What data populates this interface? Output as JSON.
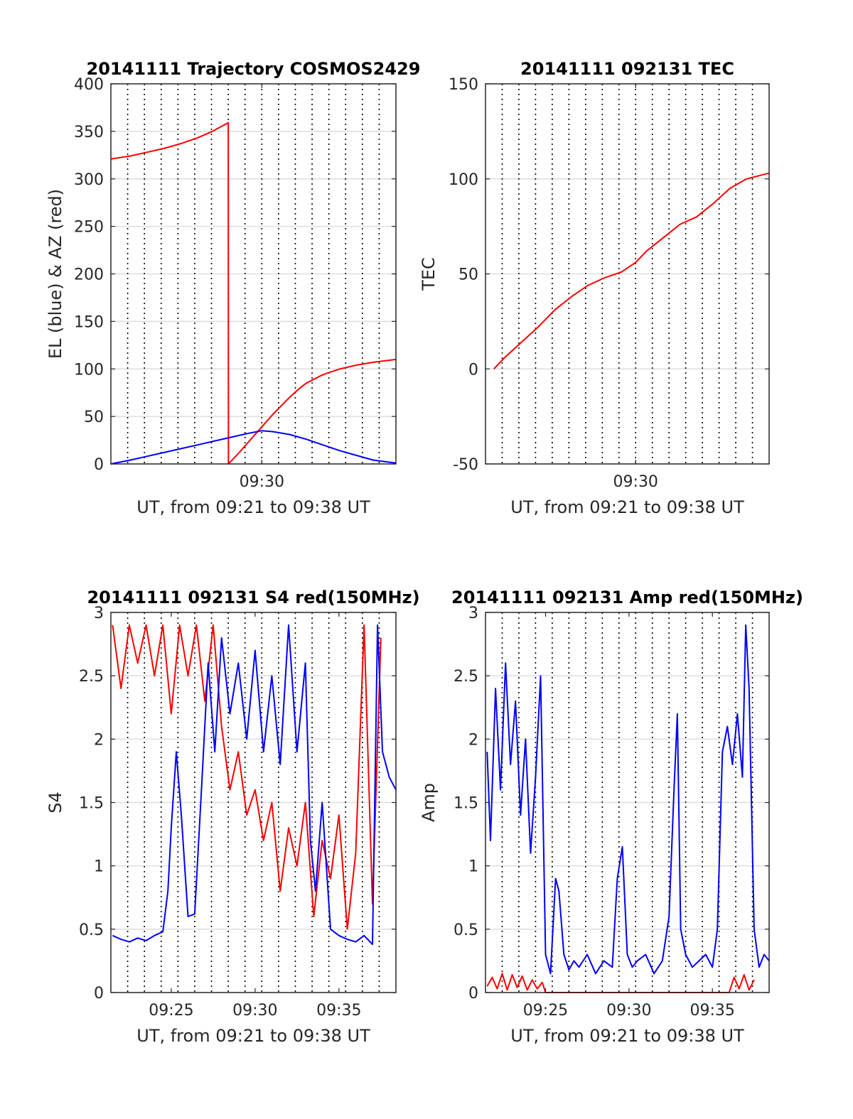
{
  "chart_data": [
    {
      "type": "line",
      "title": "20141111 Trajectory COSMOS2429",
      "xlabel": "UT, from 09:21 to 09:38 UT",
      "ylabel": "EL (blue) & AZ (red)",
      "xlim": [
        9.35,
        26.35
      ],
      "ylim": [
        0,
        400
      ],
      "yticks": [
        0,
        50,
        100,
        150,
        200,
        250,
        300,
        350,
        400
      ],
      "xtick_labels": [
        {
          "x": 18.35,
          "label": "09:30"
        }
      ],
      "x_grid": [
        10.35,
        11.35,
        12.35,
        13.35,
        14.35,
        15.35,
        16.35,
        17.35,
        18.35,
        19.35,
        20.35,
        21.35,
        22.35,
        23.35,
        24.35,
        25.35
      ],
      "grid": true,
      "series": [
        {
          "color": "#ff0000",
          "x": [
            9.35,
            10.5,
            11.5,
            12.5,
            13.5,
            14.5,
            15.4,
            16.35,
            16.36,
            17.0,
            17.5,
            18.0,
            18.5,
            19.0,
            19.5,
            20.0,
            20.5,
            21.0,
            22.0,
            23.0,
            24.0,
            25.0,
            26.35
          ],
          "values": [
            321,
            324,
            328,
            332,
            337,
            343,
            350,
            359,
            0,
            12,
            22,
            32,
            42,
            52,
            61,
            70,
            78,
            85,
            94,
            100,
            104,
            107,
            110
          ]
        },
        {
          "color": "#0000ff",
          "x": [
            9.35,
            10.5,
            11.5,
            12.5,
            13.5,
            14.5,
            15.5,
            16.5,
            17.5,
            18.35,
            19.0,
            20.0,
            21.0,
            22.0,
            23.0,
            24.0,
            25.0,
            26.35
          ],
          "values": [
            0,
            4,
            8,
            12,
            16,
            20,
            24,
            28,
            32,
            35,
            34,
            31,
            26,
            20,
            14,
            9,
            4,
            1
          ]
        }
      ]
    },
    {
      "type": "line",
      "title": "20141111 092131 TEC",
      "xlabel": "UT, from 09:21 to 09:38 UT",
      "ylabel": "TEC",
      "xlim": [
        9.35,
        26.35
      ],
      "ylim": [
        -50,
        150
      ],
      "yticks": [
        -50,
        0,
        50,
        100,
        150
      ],
      "xtick_labels": [
        {
          "x": 18.35,
          "label": "09:30"
        }
      ],
      "x_grid": [
        10.35,
        11.35,
        12.35,
        13.35,
        14.35,
        15.35,
        16.35,
        17.35,
        18.35,
        19.35,
        20.35,
        21.35,
        22.35,
        23.35,
        24.35,
        25.35
      ],
      "grid": true,
      "series": [
        {
          "color": "#ff0000",
          "x": [
            9.85,
            10.5,
            11.5,
            12.5,
            13.5,
            14.5,
            15.5,
            16.5,
            17.5,
            18.35,
            19.0,
            20.0,
            21.0,
            22.0,
            23.0,
            24.0,
            25.0,
            26.35
          ],
          "values": [
            0,
            6,
            14,
            22,
            31,
            38,
            44,
            48,
            51,
            56,
            62,
            69,
            76,
            80,
            87,
            95,
            100,
            103
          ]
        }
      ]
    },
    {
      "type": "line",
      "title": "20141111 092131 S4 red(150MHz)",
      "xlabel": "UT, from 09:21 to 09:38 UT",
      "ylabel": "S4",
      "xlim": [
        21.4,
        38.4
      ],
      "ylim": [
        0,
        3
      ],
      "yticks": [
        0,
        0.5,
        1,
        1.5,
        2,
        2.5,
        3
      ],
      "xtick_labels": [
        {
          "x": 25,
          "label": "09:25"
        },
        {
          "x": 30,
          "label": "09:30"
        },
        {
          "x": 35,
          "label": "09:35"
        }
      ],
      "x_grid": [
        22.4,
        23.4,
        24.4,
        25.4,
        26.4,
        27.4,
        28.4,
        29.4,
        30.4,
        31.4,
        32.4,
        33.4,
        34.4,
        35.4,
        36.4,
        37.4
      ],
      "grid": true,
      "series": [
        {
          "color": "#ff0000",
          "x": [
            21.5,
            22.0,
            22.5,
            23.0,
            23.5,
            24.0,
            24.5,
            25.0,
            25.5,
            26.0,
            26.5,
            27.0,
            27.5,
            28.0,
            28.5,
            29.0,
            29.5,
            30.0,
            30.5,
            31.0,
            31.5,
            32.0,
            32.5,
            33.0,
            33.5,
            34.0,
            34.5,
            35.0,
            35.5,
            36.0,
            36.5,
            37.0,
            37.5
          ],
          "values": [
            2.9,
            2.4,
            2.9,
            2.6,
            2.9,
            2.5,
            2.9,
            2.2,
            2.9,
            2.5,
            2.9,
            2.3,
            2.9,
            2.1,
            1.6,
            1.9,
            1.4,
            1.6,
            1.2,
            1.5,
            0.8,
            1.3,
            1.0,
            1.5,
            0.6,
            1.2,
            0.9,
            1.4,
            0.5,
            1.1,
            2.9,
            0.7,
            2.8
          ]
        },
        {
          "color": "#0000ff",
          "x": [
            21.5,
            22.0,
            22.5,
            23.0,
            23.5,
            24.0,
            24.5,
            24.8,
            25.0,
            25.3,
            25.6,
            26.0,
            26.4,
            26.8,
            27.2,
            27.6,
            28.0,
            28.5,
            29.0,
            29.5,
            30.0,
            30.5,
            31.0,
            31.5,
            32.0,
            32.5,
            33.0,
            33.3,
            33.6,
            34.0,
            34.5,
            35.0,
            35.5,
            36.0,
            36.5,
            37.0,
            37.3,
            37.6,
            38.0,
            38.4
          ],
          "values": [
            0.45,
            0.42,
            0.4,
            0.43,
            0.41,
            0.45,
            0.48,
            0.8,
            1.3,
            1.9,
            1.4,
            0.6,
            0.62,
            1.6,
            2.6,
            1.9,
            2.8,
            2.2,
            2.6,
            2.0,
            2.7,
            1.9,
            2.5,
            1.8,
            2.9,
            1.9,
            2.6,
            1.2,
            0.8,
            1.5,
            0.5,
            0.45,
            0.42,
            0.4,
            0.45,
            0.38,
            2.9,
            1.9,
            1.7,
            1.6
          ]
        }
      ]
    },
    {
      "type": "line",
      "title": "20141111 092131 Amp red(150MHz)",
      "xlabel": "UT, from 09:21 to 09:38 UT",
      "ylabel": "Amp",
      "xlim": [
        21.4,
        38.4
      ],
      "ylim": [
        0,
        3
      ],
      "yticks": [
        0,
        0.5,
        1,
        1.5,
        2,
        2.5,
        3
      ],
      "xtick_labels": [
        {
          "x": 25,
          "label": "09:25"
        },
        {
          "x": 30,
          "label": "09:30"
        },
        {
          "x": 35,
          "label": "09:35"
        }
      ],
      "x_grid": [
        22.4,
        23.4,
        24.4,
        25.4,
        26.4,
        27.4,
        28.4,
        29.4,
        30.4,
        31.4,
        32.4,
        33.4,
        34.4,
        35.4,
        36.4,
        37.4
      ],
      "grid": true,
      "series": [
        {
          "color": "#ff0000",
          "x": [
            21.5,
            21.8,
            22.1,
            22.4,
            22.7,
            23.0,
            23.3,
            23.6,
            23.9,
            24.2,
            24.5,
            24.8,
            25.0,
            36.0,
            36.3,
            36.6,
            36.9,
            37.2,
            37.5
          ],
          "values": [
            0.05,
            0.12,
            0.03,
            0.15,
            0.02,
            0.14,
            0.04,
            0.13,
            0.02,
            0.1,
            0.03,
            0.08,
            0.0,
            0.0,
            0.12,
            0.03,
            0.14,
            0.02,
            0.1
          ]
        },
        {
          "color": "#0000ff",
          "x": [
            21.5,
            21.7,
            22.0,
            22.3,
            22.6,
            22.9,
            23.2,
            23.5,
            23.8,
            24.1,
            24.4,
            24.7,
            25.0,
            25.3,
            25.6,
            25.8,
            26.1,
            26.4,
            26.7,
            27.0,
            27.5,
            28.0,
            28.5,
            29.0,
            29.3,
            29.6,
            29.9,
            30.2,
            30.5,
            31.0,
            31.5,
            32.0,
            32.4,
            32.7,
            32.9,
            33.1,
            33.4,
            33.8,
            34.2,
            34.6,
            35.0,
            35.3,
            35.6,
            35.9,
            36.2,
            36.5,
            36.8,
            37.0,
            37.2,
            37.5,
            37.8,
            38.1,
            38.4
          ],
          "values": [
            1.9,
            1.2,
            2.4,
            1.6,
            2.6,
            1.8,
            2.3,
            1.4,
            2.0,
            1.1,
            1.7,
            2.5,
            0.3,
            0.15,
            0.9,
            0.8,
            0.3,
            0.18,
            0.25,
            0.2,
            0.3,
            0.15,
            0.25,
            0.2,
            0.9,
            1.15,
            0.3,
            0.2,
            0.25,
            0.3,
            0.15,
            0.25,
            0.6,
            1.6,
            2.2,
            0.5,
            0.3,
            0.2,
            0.25,
            0.3,
            0.2,
            0.5,
            1.9,
            2.1,
            1.8,
            2.2,
            1.7,
            2.9,
            2.4,
            0.5,
            0.2,
            0.3,
            0.25
          ]
        }
      ]
    }
  ]
}
